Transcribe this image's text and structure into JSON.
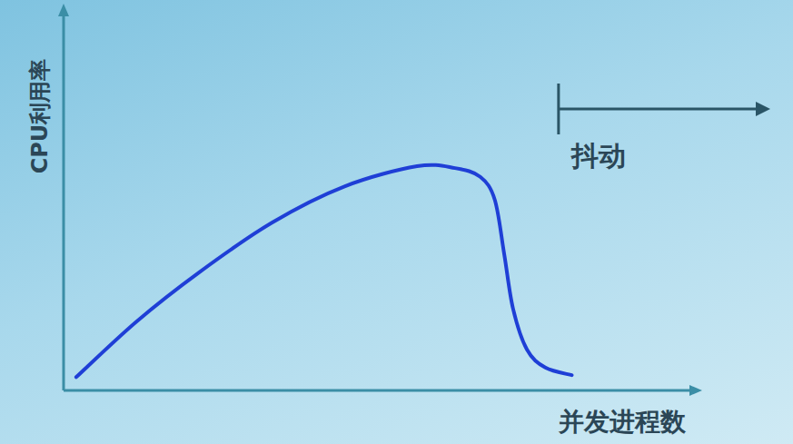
{
  "chart_data": {
    "type": "line",
    "x_label": "并发进程数",
    "y_label": "CPU利用率",
    "x": [
      2,
      11.5,
      21.5,
      33,
      44.5,
      56,
      62,
      66,
      68.3,
      69.8,
      71.2,
      73.4,
      76.3,
      80.5
    ],
    "values": [
      3.5,
      18,
      31,
      44,
      53.5,
      58.8,
      58.3,
      56,
      50,
      35.7,
      21.4,
      10.7,
      6,
      4
    ],
    "color": "#1f3fd6",
    "xlim": [
      0,
      100
    ],
    "ylim": [
      0,
      100
    ],
    "tick_labels": false,
    "grid": false,
    "annotations": [
      {
        "text": "抖动",
        "x": 78.4
      }
    ]
  }
}
